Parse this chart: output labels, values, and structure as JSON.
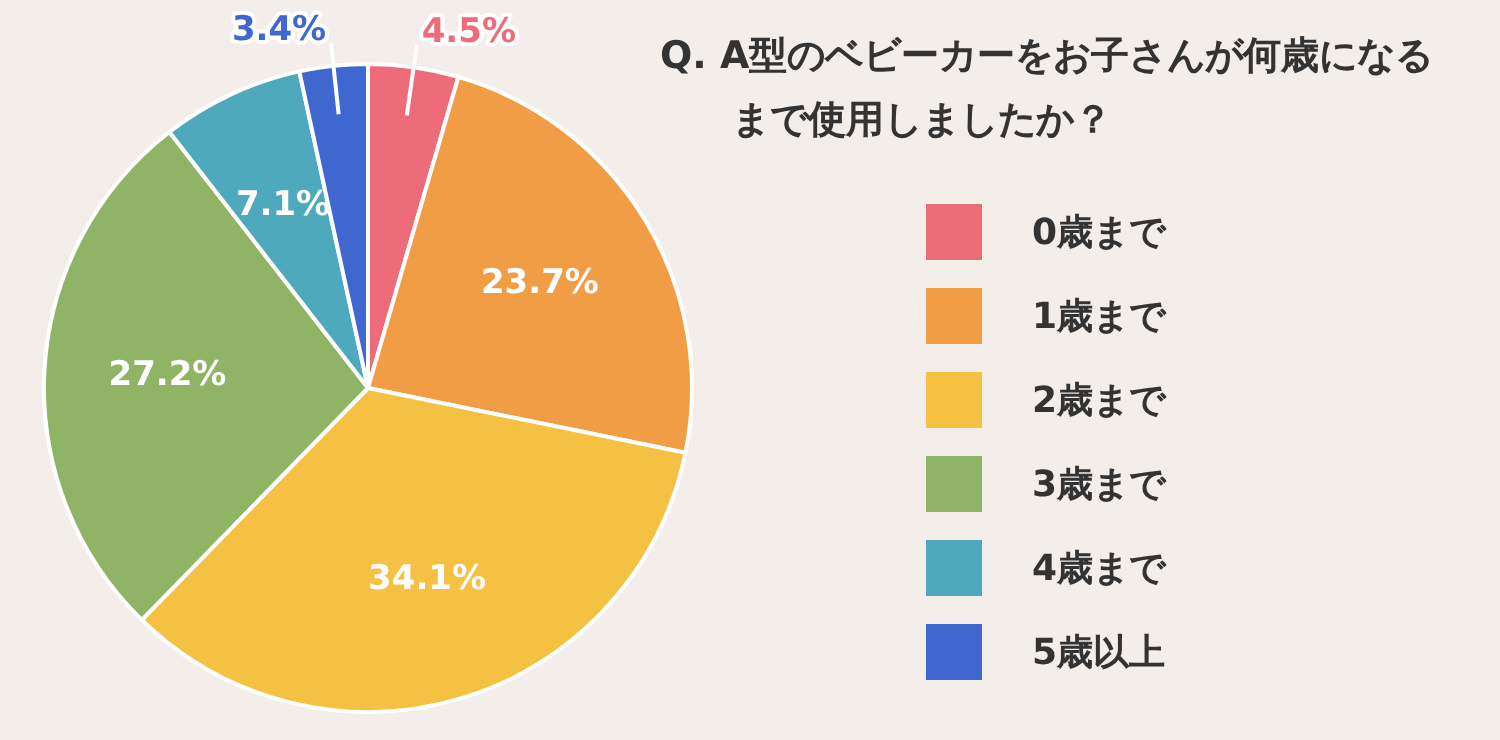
{
  "chart_data": {
    "type": "pie",
    "title": "Q. A型のベビーカーをお子さんが何歳になるまで使用しましたか？",
    "categories": [
      "0歳まで",
      "1歳まで",
      "2歳まで",
      "3歳まで",
      "4歳まで",
      "5歳以上"
    ],
    "values": [
      4.5,
      23.7,
      34.1,
      27.2,
      7.1,
      3.4
    ],
    "value_labels": [
      "4.5%",
      "23.7%",
      "34.1%",
      "27.2%",
      "7.1%",
      "3.4%"
    ],
    "colors": [
      "#ee6b7a",
      "#f19d45",
      "#f5c143",
      "#8fb466",
      "#4ea9bd",
      "#3f67cf"
    ],
    "legend": "right"
  }
}
